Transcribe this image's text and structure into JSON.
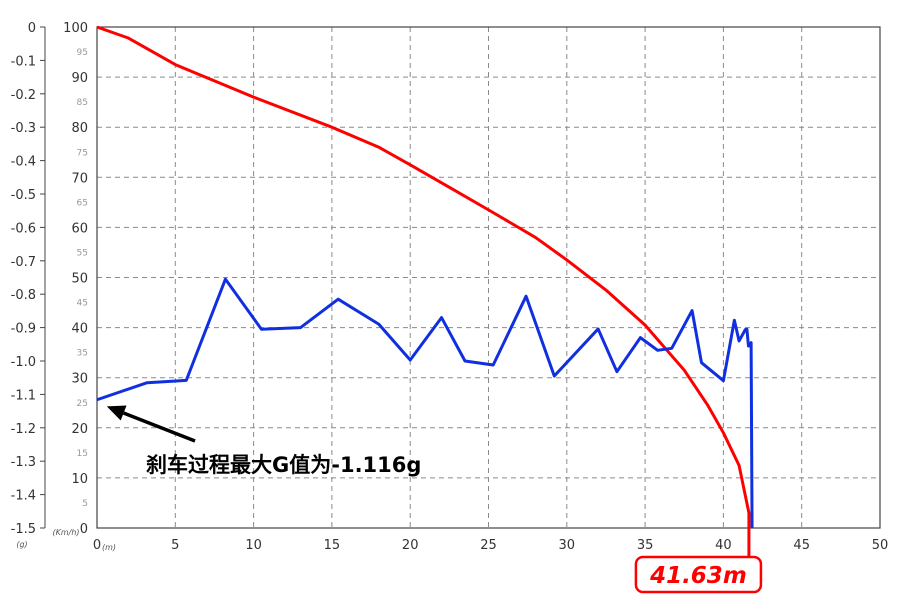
{
  "chart_data": {
    "type": "line",
    "x": {
      "unit": "(m)",
      "min": 0,
      "max": 50,
      "ticks": [
        "0",
        "5",
        "10",
        "15",
        "20",
        "25",
        "30",
        "35",
        "40",
        "45",
        "50"
      ]
    },
    "y_left": {
      "unit": "(g)",
      "min": -1.5,
      "max": 0,
      "ticks": [
        "0",
        "-0.1",
        "-0.2",
        "-0.3",
        "-0.4",
        "-0.5",
        "-0.6",
        "-0.7",
        "-0.8",
        "-0.9",
        "-1.0",
        "-1.1",
        "-1.2",
        "-1.3",
        "-1.4",
        "-1.5"
      ]
    },
    "y_right": {
      "unit": "(Km/h)",
      "min": 0,
      "max": 100,
      "major_ticks": [
        "0",
        "10",
        "20",
        "30",
        "40",
        "50",
        "60",
        "70",
        "80",
        "90",
        "100"
      ],
      "minor_ticks": [
        "5",
        "15",
        "25",
        "35",
        "45",
        "55",
        "65",
        "75",
        "85",
        "95"
      ]
    },
    "grid": true,
    "series": [
      {
        "color": "#ff0000",
        "axis": "speed",
        "points": [
          [
            0,
            100
          ],
          [
            2,
            97.8
          ],
          [
            5,
            92.5
          ],
          [
            10,
            86
          ],
          [
            15,
            80
          ],
          [
            18,
            76
          ],
          [
            20,
            72.5
          ],
          [
            22.5,
            68
          ],
          [
            25,
            63.5
          ],
          [
            28,
            58
          ],
          [
            30,
            53.5
          ],
          [
            32.5,
            47.5
          ],
          [
            35,
            40.5
          ],
          [
            37.5,
            31.5
          ],
          [
            39,
            24.5
          ],
          [
            40,
            19
          ],
          [
            41,
            12.5
          ],
          [
            41.63,
            3
          ],
          [
            41.63,
            0
          ]
        ]
      },
      {
        "color": "#1030e0",
        "axis": "g",
        "points": [
          [
            0,
            -1.116
          ],
          [
            3.2,
            -1.065
          ],
          [
            5.7,
            -1.058
          ],
          [
            8.2,
            -0.755
          ],
          [
            10.5,
            -0.905
          ],
          [
            13,
            -0.9
          ],
          [
            15.4,
            -0.815
          ],
          [
            18,
            -0.89
          ],
          [
            20,
            -0.997
          ],
          [
            22,
            -0.87
          ],
          [
            23.5,
            -1.0
          ],
          [
            25.3,
            -1.012
          ],
          [
            27.4,
            -0.806
          ],
          [
            29.2,
            -1.045
          ],
          [
            32,
            -0.904
          ],
          [
            33.2,
            -1.032
          ],
          [
            34.7,
            -0.93
          ],
          [
            35.8,
            -0.968
          ],
          [
            36.7,
            -0.962
          ],
          [
            38,
            -0.849
          ],
          [
            38.6,
            -1.005
          ],
          [
            40,
            -1.059
          ],
          [
            40.7,
            -0.878
          ],
          [
            41,
            -0.94
          ],
          [
            41.4,
            -0.906
          ],
          [
            41.5,
            -0.905
          ],
          [
            41.6,
            -0.955
          ],
          [
            41.73,
            -0.955
          ],
          [
            41.77,
            -0.945
          ],
          [
            41.83,
            -1.5
          ]
        ]
      }
    ],
    "annotation": {
      "text": "刹车过程最大G值为-1.116g",
      "target_x": 0.5,
      "target_g": -1.13
    },
    "stop_distance": {
      "value": 41.63,
      "label": "41.63m"
    }
  }
}
